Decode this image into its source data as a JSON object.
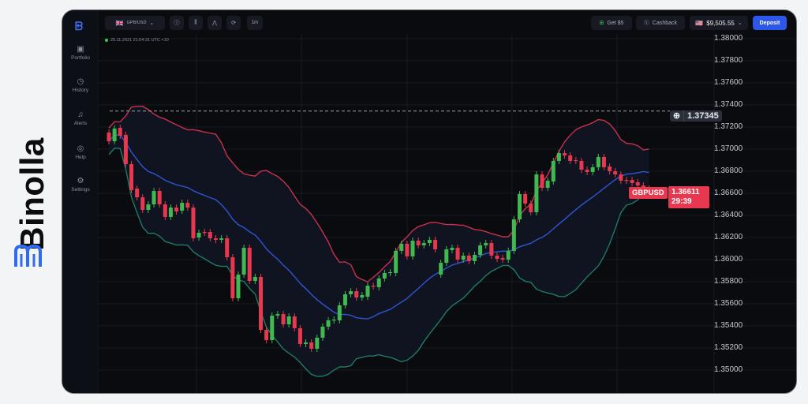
{
  "brand": {
    "name": "Binolla",
    "color": "#2d6cf0"
  },
  "sidebar": {
    "items": [
      {
        "label": "Portfolio",
        "icon": "briefcase-icon"
      },
      {
        "label": "History",
        "icon": "clock-icon"
      },
      {
        "label": "Alerts",
        "icon": "bell-icon"
      },
      {
        "label": "Help",
        "icon": "lifebuoy-icon"
      },
      {
        "label": "Settings",
        "icon": "gear-icon"
      }
    ]
  },
  "toolbar": {
    "pair": "GPB/USD",
    "timeframe": "1m",
    "get_bonus": "Get $5",
    "cashback": "Cashback",
    "balance": "$9,505.55",
    "deposit": "Deposit"
  },
  "status": {
    "datetime": "25.11.2021  21:04:31  UTC +10"
  },
  "price": {
    "symbol": "GBPUSD",
    "current": "1.36611",
    "countdown": "29:39",
    "crosshair": "1.37345",
    "crosshair_value": 1.37345
  },
  "colors": {
    "up": "#3fb950",
    "down": "#e8384f",
    "upper_band": "#c9304a",
    "middle_band": "#2f55d4",
    "lower_band": "#1f7a64"
  },
  "chart_data": {
    "type": "candlestick",
    "indicator": "bollinger-bands",
    "ylim": [
      1.35,
      1.38
    ],
    "yticks": [
      "1.38000",
      "1.37800",
      "1.37600",
      "1.37400",
      "1.37200",
      "1.37000",
      "1.36800",
      "1.36600",
      "1.36400",
      "1.36200",
      "1.36000",
      "1.35800",
      "1.35600",
      "1.35400",
      "1.35200",
      "1.35000"
    ],
    "grid": true,
    "candles": [
      [
        1.3715,
        1.37071
      ],
      [
        1.37071,
        1.37186
      ],
      [
        1.37193,
        1.37121
      ],
      [
        1.37129,
        1.36864
      ],
      [
        1.36864,
        1.36629
      ],
      [
        1.36643,
        1.36564
      ],
      [
        1.36564,
        1.3645
      ],
      [
        1.3645,
        1.365
      ],
      [
        1.365,
        1.36621
      ],
      [
        1.36621,
        1.365
      ],
      [
        1.365,
        1.36386
      ],
      [
        1.36386,
        1.36471
      ],
      [
        1.36471,
        1.36436
      ],
      [
        1.36443,
        1.36514
      ],
      [
        1.36514,
        1.36471
      ],
      [
        1.36471,
        1.36193
      ],
      [
        1.362,
        1.36243
      ],
      [
        1.3625,
        1.36243
      ],
      [
        1.3625,
        1.36193
      ],
      [
        1.36193,
        1.36179
      ],
      [
        1.36179,
        1.36193
      ],
      [
        1.36193,
        1.36021
      ],
      [
        1.36021,
        1.3565
      ],
      [
        1.3565,
        1.35864
      ],
      [
        1.35864,
        1.36107
      ],
      [
        1.36107,
        1.35807
      ],
      [
        1.35807,
        1.35843
      ],
      [
        1.35843,
        1.35364
      ],
      [
        1.35364,
        1.35271
      ],
      [
        1.35271,
        1.35493
      ],
      [
        1.35493,
        1.35507
      ],
      [
        1.35507,
        1.35414
      ],
      [
        1.35414,
        1.35486
      ],
      [
        1.35486,
        1.35379
      ],
      [
        1.35379,
        1.35236
      ],
      [
        1.35236,
        1.3525
      ],
      [
        1.3525,
        1.35193
      ],
      [
        1.35193,
        1.35293
      ],
      [
        1.35293,
        1.35393
      ],
      [
        1.35393,
        1.3545
      ],
      [
        1.3545,
        1.35457
      ],
      [
        1.3545,
        1.35586
      ],
      [
        1.35586,
        1.35686
      ],
      [
        1.35686,
        1.35714
      ],
      [
        1.35714,
        1.35657
      ],
      [
        1.35657,
        1.35679
      ],
      [
        1.35664,
        1.35764
      ],
      [
        1.35764,
        1.35757
      ],
      [
        1.3575,
        1.35829
      ],
      [
        1.35829,
        1.35879
      ],
      [
        1.35879,
        1.35886
      ],
      [
        1.35879,
        1.36079
      ],
      [
        1.36079,
        1.36143
      ],
      [
        1.36143,
        1.36029
      ],
      [
        1.36029,
        1.36171
      ],
      [
        1.36171,
        1.36129
      ],
      [
        1.36129,
        1.3615
      ],
      [
        1.3615,
        1.36179
      ],
      [
        1.36179,
        1.36093
      ],
      [
        1.35864,
        1.35971
      ],
      [
        1.35971,
        1.36093
      ],
      [
        1.36086,
        1.36107
      ],
      [
        1.36107,
        1.36
      ],
      [
        1.36,
        1.36036
      ],
      [
        1.36036,
        1.35986
      ],
      [
        1.35986,
        1.36043
      ],
      [
        1.36043,
        1.36129
      ],
      [
        1.36129,
        1.3615
      ],
      [
        1.3615,
        1.36036
      ],
      [
        1.36036,
        1.36007
      ],
      [
        1.36014,
        1.36
      ],
      [
        1.36,
        1.36079
      ],
      [
        1.36079,
        1.36364
      ],
      [
        1.36364,
        1.36593
      ],
      [
        1.36593,
        1.36507
      ],
      [
        1.36507,
        1.36429
      ],
      [
        1.36429,
        1.36771
      ],
      [
        1.36771,
        1.3665
      ],
      [
        1.3665,
        1.36714
      ],
      [
        1.36707,
        1.36893
      ],
      [
        1.36893,
        1.36964
      ],
      [
        1.36964,
        1.36943
      ],
      [
        1.36943,
        1.36893
      ],
      [
        1.369,
        1.36893
      ],
      [
        1.36893,
        1.36814
      ],
      [
        1.36814,
        1.36793
      ],
      [
        1.36793,
        1.36836
      ],
      [
        1.36836,
        1.36929
      ],
      [
        1.36929,
        1.36836
      ],
      [
        1.36843,
        1.368
      ],
      [
        1.368,
        1.36771
      ],
      [
        1.36771,
        1.36714
      ],
      [
        1.36721,
        1.36714
      ],
      [
        1.36721,
        1.36693
      ],
      [
        1.367,
        1.36671
      ],
      [
        1.36671,
        1.36643
      ],
      [
        1.36643,
        1.36611
      ]
    ]
  }
}
